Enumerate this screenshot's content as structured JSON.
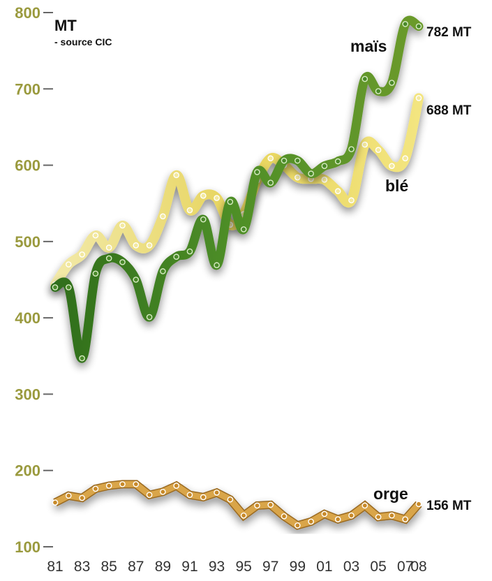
{
  "chart_data": {
    "type": "line",
    "unit_label": "MT",
    "source_label": "- source CIC",
    "x": [
      1981,
      1982,
      1983,
      1984,
      1985,
      1986,
      1987,
      1988,
      1989,
      1990,
      1991,
      1992,
      1993,
      1994,
      1995,
      1996,
      1997,
      1998,
      1999,
      2000,
      2001,
      2002,
      2003,
      2004,
      2005,
      2006,
      2007,
      2008
    ],
    "xticks": [
      {
        "year": 1981,
        "label": "81"
      },
      {
        "year": 1983,
        "label": "83"
      },
      {
        "year": 1985,
        "label": "85"
      },
      {
        "year": 1987,
        "label": "87"
      },
      {
        "year": 1989,
        "label": "89"
      },
      {
        "year": 1991,
        "label": "91"
      },
      {
        "year": 1993,
        "label": "93"
      },
      {
        "year": 1995,
        "label": "95"
      },
      {
        "year": 1997,
        "label": "97"
      },
      {
        "year": 1999,
        "label": "99"
      },
      {
        "year": 2001,
        "label": "01"
      },
      {
        "year": 2003,
        "label": "03"
      },
      {
        "year": 2005,
        "label": "05"
      },
      {
        "year": 2007,
        "label": "07"
      },
      {
        "year": 2008,
        "label": "08"
      }
    ],
    "yticks": [
      100,
      200,
      300,
      400,
      500,
      600,
      700,
      800
    ],
    "ylim": [
      100,
      800
    ],
    "grid": false,
    "series": [
      {
        "name": "maïs",
        "end_label": "782 MT",
        "color": "#3a7a1e",
        "values": [
          440,
          440,
          347,
          458,
          478,
          473,
          450,
          401,
          461,
          480,
          487,
          529,
          469,
          552,
          516,
          591,
          577,
          606,
          606,
          589,
          599,
          605,
          621,
          713,
          697,
          708,
          785,
          782
        ]
      },
      {
        "name": "blé",
        "end_label": "688 MT",
        "color": "#e8d86a",
        "values": [
          444,
          470,
          483,
          508,
          492,
          521,
          495,
          495,
          533,
          587,
          541,
          560,
          557,
          522,
          536,
          580,
          609,
          600,
          584,
          582,
          581,
          566,
          554,
          627,
          620,
          599,
          609,
          688
        ]
      },
      {
        "name": "orge",
        "end_label": "156 MT",
        "color": "#d9a54a",
        "values": [
          158,
          167,
          164,
          176,
          180,
          182,
          182,
          168,
          172,
          180,
          168,
          165,
          171,
          162,
          141,
          154,
          155,
          140,
          128,
          133,
          143,
          136,
          141,
          154,
          139,
          141,
          136,
          156
        ]
      }
    ]
  }
}
